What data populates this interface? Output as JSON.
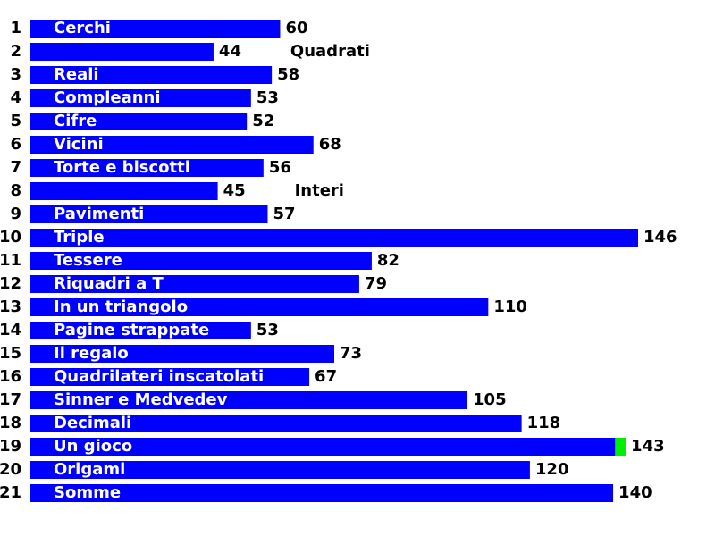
{
  "chart_data": {
    "type": "hbar",
    "ranks": [
      1,
      2,
      3,
      4,
      5,
      6,
      7,
      8,
      9,
      10,
      11,
      12,
      13,
      14,
      15,
      16,
      17,
      18,
      19,
      20,
      21
    ],
    "categories": [
      "Cerchi",
      "Quadrati",
      "Reali",
      "Compleanni",
      "Cifre",
      "Vicini",
      "Torte e biscotti",
      "Interi",
      "Pavimenti",
      "Triple",
      "Tessere",
      "Riquadri a T",
      "In un triangolo",
      "Pagine strappate",
      "Il regalo",
      "Quadrilateri inscatolati",
      "Sinner e Medvedev",
      "Decimali",
      "Un gioco",
      "Origami",
      "Somme"
    ],
    "values": [
      60,
      44,
      58,
      53,
      52,
      68,
      56,
      45,
      57,
      146,
      82,
      79,
      110,
      53,
      73,
      67,
      105,
      118,
      143,
      120,
      140
    ],
    "color": "#0000ff",
    "highlight": {
      "index": 18,
      "start": 140.5,
      "color": "#00ee00"
    },
    "xlim": [
      0,
      146
    ]
  }
}
